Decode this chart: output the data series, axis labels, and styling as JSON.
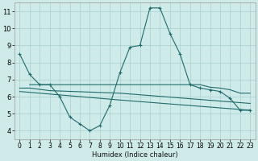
{
  "background_color": "#ceeae9",
  "grid_color": "#aed4d2",
  "line_color": "#1e6b6b",
  "xlabel": "Humidex (Indice chaleur)",
  "xlim": [
    -0.5,
    23.5
  ],
  "ylim": [
    3.5,
    11.5
  ],
  "xticks": [
    0,
    1,
    2,
    3,
    4,
    5,
    6,
    7,
    8,
    9,
    10,
    11,
    12,
    13,
    14,
    15,
    16,
    17,
    18,
    19,
    20,
    21,
    22,
    23
  ],
  "yticks": [
    4,
    5,
    6,
    7,
    8,
    9,
    10,
    11
  ],
  "series": [
    {
      "x": [
        0,
        1,
        2,
        3,
        4,
        5,
        6,
        7,
        8,
        9,
        10,
        11,
        12,
        13,
        14,
        15,
        16,
        17,
        18,
        19,
        20,
        21,
        22,
        23
      ],
      "y": [
        8.5,
        7.3,
        6.7,
        6.7,
        6.0,
        4.8,
        4.4,
        4.0,
        4.3,
        5.5,
        7.4,
        8.9,
        9.0,
        11.2,
        11.2,
        9.7,
        8.5,
        6.7,
        6.5,
        6.4,
        6.3,
        5.9,
        5.2,
        5.2
      ],
      "markers": true
    },
    {
      "x": [
        1,
        2,
        3,
        10,
        14,
        15,
        16,
        17,
        18,
        19,
        20,
        21,
        22,
        23
      ],
      "y": [
        6.7,
        6.7,
        6.7,
        6.7,
        6.7,
        6.7,
        6.7,
        6.7,
        6.7,
        6.55,
        6.5,
        6.4,
        6.2,
        6.2
      ],
      "markers": false
    },
    {
      "x": [
        0,
        1,
        3,
        10,
        23
      ],
      "y": [
        6.5,
        6.5,
        6.35,
        6.2,
        5.6
      ],
      "markers": false
    },
    {
      "x": [
        0,
        1,
        10,
        23
      ],
      "y": [
        6.3,
        6.25,
        5.8,
        5.2
      ],
      "markers": false
    }
  ]
}
